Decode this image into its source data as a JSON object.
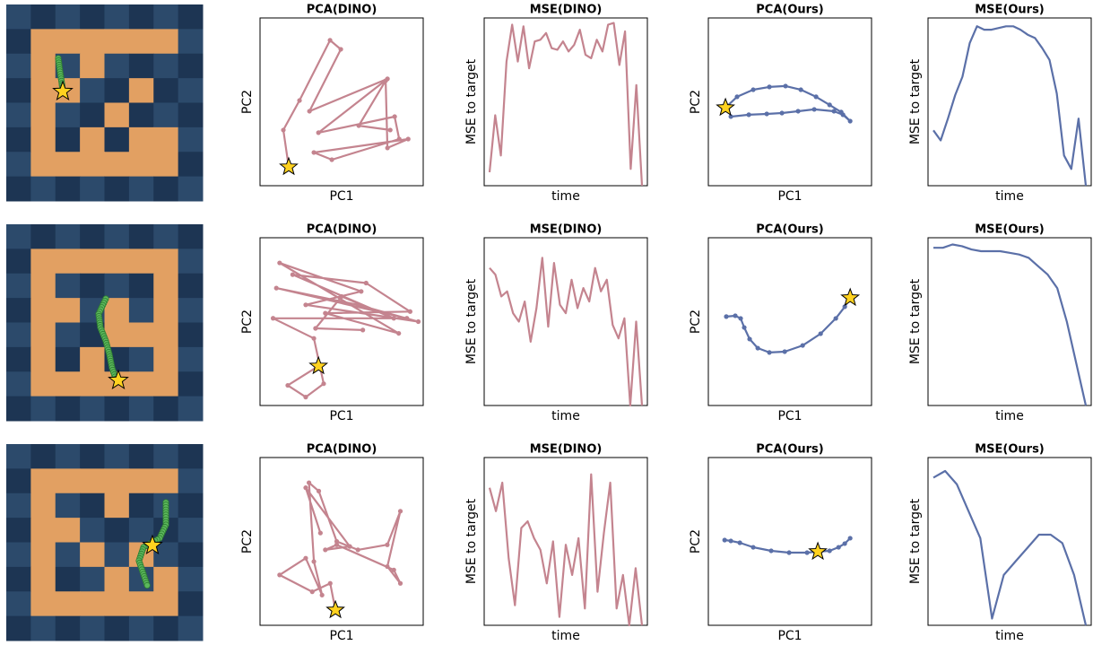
{
  "chart_data": [
    {
      "type": "line",
      "title": "PCA(DINO)",
      "xlabel": "PC1",
      "ylabel": "PC2",
      "color": "#c4848f",
      "markers": true,
      "xlim": [
        0,
        100
      ],
      "ylim": [
        0,
        100
      ],
      "x": [
        17.6,
        14.3,
        24.2,
        42.9,
        49.5,
        30.3,
        78.1,
        35.8,
        82.5,
        85.3,
        44,
        33,
        90.8,
        78.1,
        77,
        60.5,
        79.8
      ],
      "values": [
        11.2,
        33.2,
        50.8,
        86.7,
        81.3,
        44.4,
        63.7,
        31.6,
        41.2,
        27.8,
        15.5,
        19.8,
        27.8,
        22.5,
        62.6,
        35.8,
        33.2
      ],
      "target": {
        "x": 17.6,
        "y": 11.2
      }
    },
    {
      "type": "line",
      "title": "MSE(DINO)",
      "xlabel": "time",
      "ylabel": "MSE to target",
      "color": "#c4848f",
      "markers": false,
      "ylim": [
        0,
        100
      ],
      "values": [
        8,
        42,
        18,
        74,
        96,
        74,
        95,
        70,
        86,
        87,
        91,
        82,
        81,
        86,
        80,
        84,
        93,
        78,
        76,
        87,
        80,
        96,
        97,
        72,
        92,
        10,
        60,
        0
      ]
    },
    {
      "type": "line",
      "title": "PCA(Ours)",
      "xlabel": "PC1",
      "ylabel": "PC2",
      "color": "#5b70a8",
      "markers": true,
      "xlim": [
        0,
        100
      ],
      "ylim": [
        0,
        100
      ],
      "x": [
        10.5,
        17.6,
        27.5,
        37.4,
        47.3,
        56.7,
        66,
        74.3,
        81.4,
        86.9,
        82.5,
        77,
        64.9,
        55,
        45.1,
        35.8,
        24.8,
        13.8
      ],
      "values": [
        46.5,
        53,
        57.2,
        58.9,
        59.4,
        57.2,
        53,
        48.2,
        43.9,
        38.5,
        42.3,
        44.4,
        45.5,
        44.4,
        43.3,
        42.8,
        42.3,
        41.2
      ],
      "target": {
        "x": 10.5,
        "y": 46.5
      }
    },
    {
      "type": "line",
      "title": "MSE(Ours)",
      "xlabel": "time",
      "ylabel": "MSE to target",
      "color": "#5b70a8",
      "markers": false,
      "ylim": [
        0,
        100
      ],
      "values": [
        33,
        27,
        40,
        54,
        65,
        85,
        95,
        93,
        93,
        94,
        95,
        95,
        93,
        90,
        88,
        82,
        75,
        55,
        18,
        10,
        40,
        0
      ]
    },
    {
      "type": "line",
      "title": "PCA(DINO)",
      "xlabel": "PC1",
      "ylabel": "PC2",
      "color": "#c4848f",
      "markers": true,
      "xlim": [
        0,
        100
      ],
      "ylim": [
        0,
        100
      ],
      "x": [
        35.8,
        17,
        28,
        39,
        33,
        8,
        90,
        10,
        60,
        97,
        28,
        62,
        12,
        85,
        40,
        92,
        65,
        20,
        82,
        50,
        34,
        63
      ],
      "values": [
        23.5,
        12,
        5,
        13,
        40,
        52,
        52,
        70,
        60,
        50,
        60,
        68,
        85,
        43,
        55,
        56,
        73,
        78,
        52,
        65,
        46,
        45
      ],
      "target": {
        "x": 35.8,
        "y": 23.5
      }
    },
    {
      "type": "line",
      "title": "MSE(DINO)",
      "xlabel": "time",
      "ylabel": "MSE to target",
      "color": "#c4848f",
      "markers": false,
      "ylim": [
        0,
        100
      ],
      "values": [
        82,
        78,
        65,
        68,
        55,
        50,
        62,
        38,
        58,
        88,
        47,
        85,
        60,
        55,
        75,
        58,
        70,
        62,
        82,
        68,
        75,
        48,
        40,
        52,
        0,
        50,
        0
      ]
    },
    {
      "type": "line",
      "title": "PCA(Ours)",
      "xlabel": "PC1",
      "ylabel": "PC2",
      "color": "#5b70a8",
      "markers": true,
      "xlim": [
        0,
        100
      ],
      "ylim": [
        0,
        100
      ],
      "x": [
        11,
        16.5,
        19.8,
        22,
        25.3,
        30.3,
        37.4,
        46.8,
        57.8,
        68.8,
        78.1,
        83.6,
        86.9
      ],
      "values": [
        53,
        53.5,
        51.9,
        46.5,
        39.6,
        34.2,
        31.6,
        32.1,
        35.8,
        42.8,
        51.9,
        58.9,
        64.2
      ],
      "target": {
        "x": 86.9,
        "y": 64.2
      }
    },
    {
      "type": "line",
      "title": "MSE(Ours)",
      "xlabel": "time",
      "ylabel": "MSE to target",
      "color": "#5b70a8",
      "markers": false,
      "ylim": [
        0,
        100
      ],
      "values": [
        94,
        94,
        96,
        95,
        93,
        92,
        92,
        92,
        91,
        90,
        88,
        83,
        78,
        70,
        50,
        25,
        0
      ]
    },
    {
      "type": "line",
      "title": "PCA(DINO)",
      "xlabel": "PC1",
      "ylabel": "PC2",
      "color": "#c4848f",
      "markers": true,
      "xlim": [
        0,
        100
      ],
      "ylim": [
        0,
        100
      ],
      "x": [
        46.2,
        43,
        32,
        12,
        28,
        38,
        33,
        30,
        36,
        47,
        60,
        78,
        86,
        78,
        86,
        82,
        47,
        40,
        55,
        28,
        37
      ],
      "values": [
        9.1,
        25,
        20,
        30,
        40,
        18,
        38,
        85,
        80,
        50,
        45,
        48,
        68,
        35,
        25,
        33,
        48,
        45,
        47,
        82,
        55
      ],
      "target": {
        "x": 46.2,
        "y": 9.1
      }
    },
    {
      "type": "line",
      "title": "MSE(DINO)",
      "xlabel": "time",
      "ylabel": "MSE to target",
      "color": "#c4848f",
      "markers": false,
      "ylim": [
        0,
        100
      ],
      "values": [
        82,
        68,
        85,
        40,
        12,
        58,
        62,
        52,
        45,
        25,
        50,
        5,
        48,
        30,
        52,
        10,
        90,
        20,
        55,
        85,
        10,
        30,
        0,
        34,
        0
      ]
    },
    {
      "type": "line",
      "title": "PCA(Ours)",
      "xlabel": "PC1",
      "ylabel": "PC2",
      "color": "#5b70a8",
      "markers": true,
      "xlim": [
        0,
        100
      ],
      "ylim": [
        0,
        100
      ],
      "x": [
        10,
        13.8,
        19.3,
        27.5,
        38.5,
        49.5,
        60.5,
        67.1,
        74.3,
        79.8,
        83.6,
        86.9
      ],
      "values": [
        50.8,
        50.3,
        49.2,
        46.5,
        44.4,
        43.3,
        43.3,
        43.9,
        44.4,
        46.5,
        48.7,
        51.9
      ],
      "target": {
        "x": 67.1,
        "y": 43.9
      }
    },
    {
      "type": "line",
      "title": "MSE(Ours)",
      "xlabel": "time",
      "ylabel": "MSE to target",
      "color": "#5b70a8",
      "markers": false,
      "ylim": [
        0,
        100
      ],
      "values": [
        88,
        92,
        84,
        68,
        52,
        4,
        30,
        38,
        46,
        54,
        54,
        49,
        30,
        0
      ]
    }
  ]
}
